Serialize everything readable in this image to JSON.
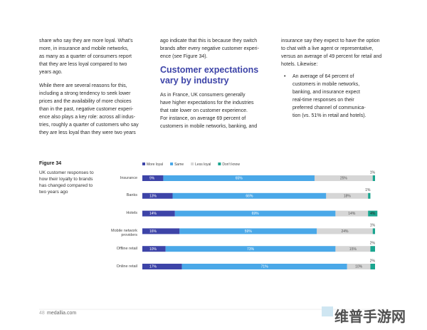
{
  "columns": [
    {
      "paragraphs": [
        [
          "share who say they are more loyal. What's",
          "more, in insurance and mobile networks,",
          "as many as a quarter of consumers report",
          "that they are less loyal compared to two",
          "years ago."
        ],
        [
          "While there are several reasons for this,",
          "including a strong tendency to seek lower",
          "prices and the availability of more choices",
          "than in the past, negative customer experi-",
          "ence also plays a key role: across all indus-",
          "tries, roughly a quarter of customers who say",
          "they are less loyal than they were two years"
        ]
      ]
    },
    {
      "paragraphs": [
        [
          "ago indicate that this is because they switch",
          "brands after every negative customer experi-",
          "ence (see Figure 34)."
        ]
      ],
      "heading": [
        "Customer expectations",
        "vary by industry"
      ],
      "after_heading": [
        "As in France, UK consumers generally",
        "have higher expectations for the industries",
        "that rate lower on customer experience.",
        "For instance, on average 69 percent of",
        "customers in mobile networks, banking, and"
      ]
    },
    {
      "paragraphs": [
        [
          "insurance say they expect to have the option",
          "to chat with a live agent or representative,",
          "versus an average of 49 percent for retail and",
          "hotels. Likewise:"
        ]
      ],
      "bullet": [
        "An average of 64 percent of",
        "customers in mobile networks,",
        "banking, and insurance expect",
        "real-time responses on their",
        "preferred channel of communica-",
        "tion (vs. 51% in retail and hotels)."
      ]
    }
  ],
  "figure": {
    "label": "Figure 34",
    "caption": [
      "UK customer responses to",
      "how their loyalty to brands",
      "has changed compared to",
      "two years ago"
    ]
  },
  "chart_data": {
    "type": "stacked-bar-horizontal",
    "categories": [
      "Insurance",
      "Banks",
      "Hotels",
      "Mobile network providers",
      "Offline retail",
      "Online retail"
    ],
    "xlim": [
      0,
      100
    ],
    "series": [
      {
        "name": "More loyal",
        "color": "#3d44a8",
        "values": [
          9,
          13,
          14,
          16,
          10,
          17
        ],
        "value_labels": [
          "9%",
          "13%",
          "14%",
          "16%",
          "10%",
          "17%"
        ]
      },
      {
        "name": "Same",
        "color": "#4aa8e8",
        "values": [
          65,
          66,
          69,
          59,
          73,
          71
        ],
        "value_labels": [
          "65%",
          "66%",
          "69%",
          "59%",
          "73%",
          "71%"
        ]
      },
      {
        "name": "Less loyal",
        "color": "#d6d6d6",
        "values": [
          25,
          18,
          14,
          24,
          15,
          10
        ],
        "value_labels": [
          "25%",
          "18%",
          "14%",
          "24%",
          "15%",
          "10%"
        ]
      },
      {
        "name": "Don't know",
        "color": "#1aa58f",
        "values": [
          1,
          1,
          4,
          1,
          2,
          2
        ],
        "value_labels": [
          "1%",
          "1%",
          "4%",
          "1%",
          "2%",
          "2%"
        ]
      }
    ]
  },
  "footer": {
    "page": "48",
    "site": "medallia.com"
  },
  "watermark": "维普手游网"
}
